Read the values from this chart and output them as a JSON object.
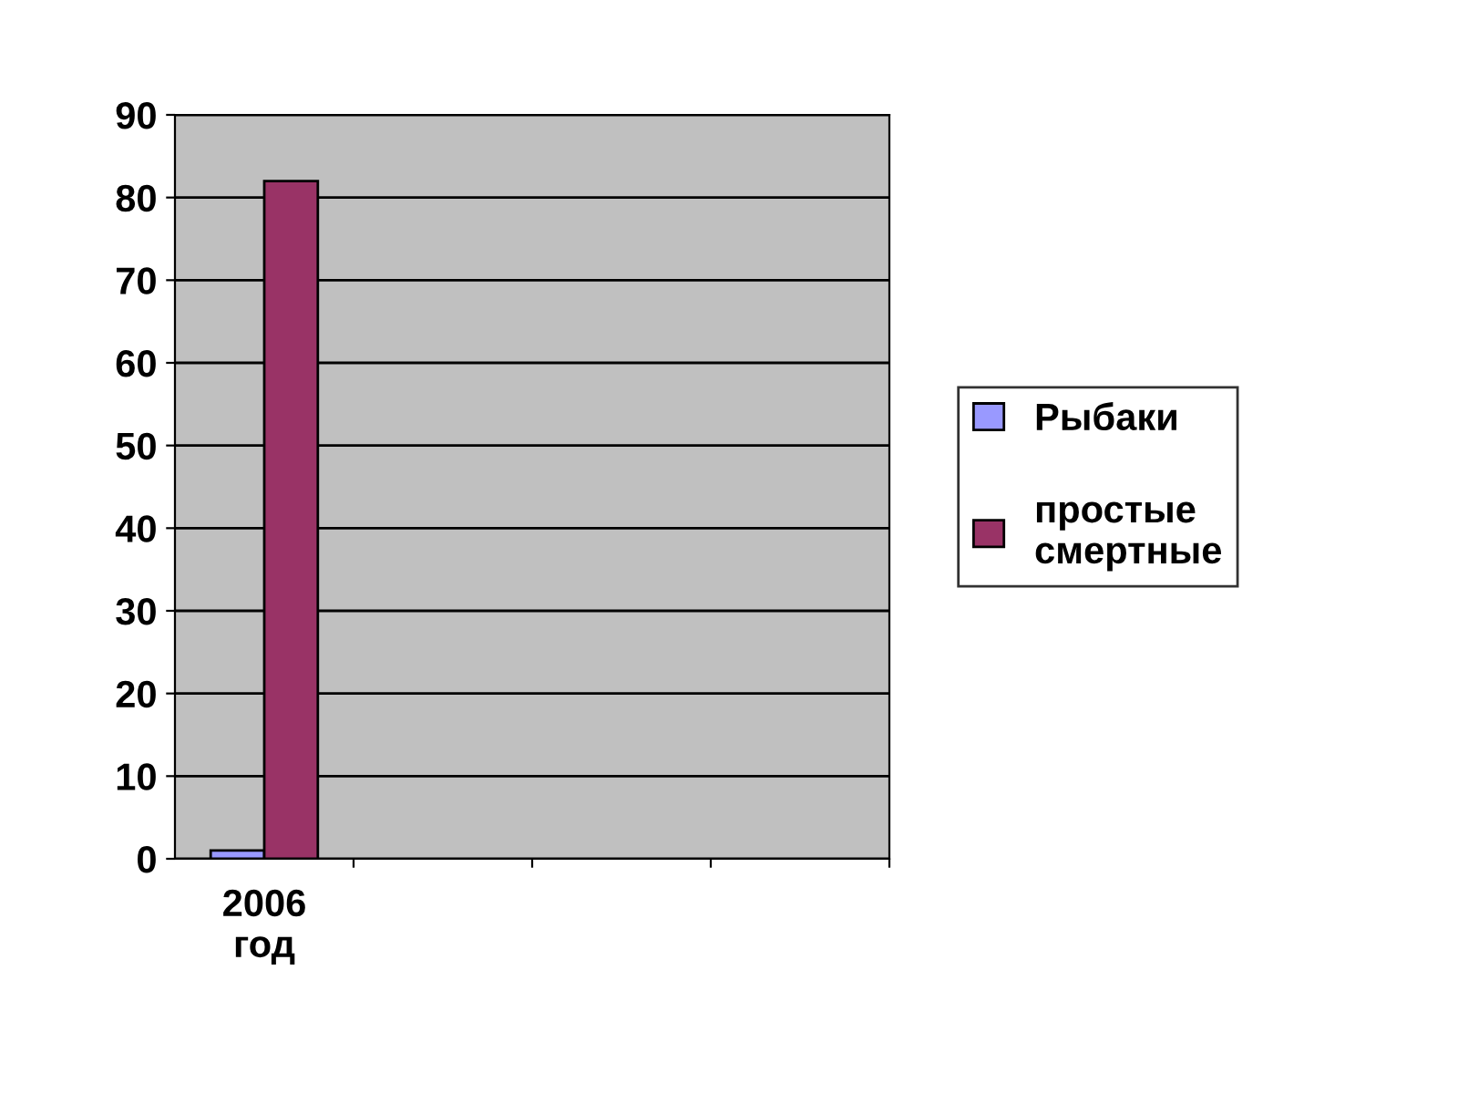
{
  "chart_data": {
    "type": "bar",
    "categories": [
      "2006\nгод",
      null,
      null,
      null
    ],
    "series": [
      {
        "name": "Рыбаки",
        "color": "#9999ff",
        "values": [
          1,
          null,
          null,
          null
        ]
      },
      {
        "name": "простые\nсмертные",
        "color": "#993366",
        "values": [
          82,
          null,
          null,
          null
        ]
      }
    ],
    "ylim": [
      0,
      90
    ],
    "yticks": [
      0,
      10,
      20,
      30,
      40,
      50,
      60,
      70,
      80,
      90
    ],
    "grid": "y",
    "legend": "right"
  }
}
